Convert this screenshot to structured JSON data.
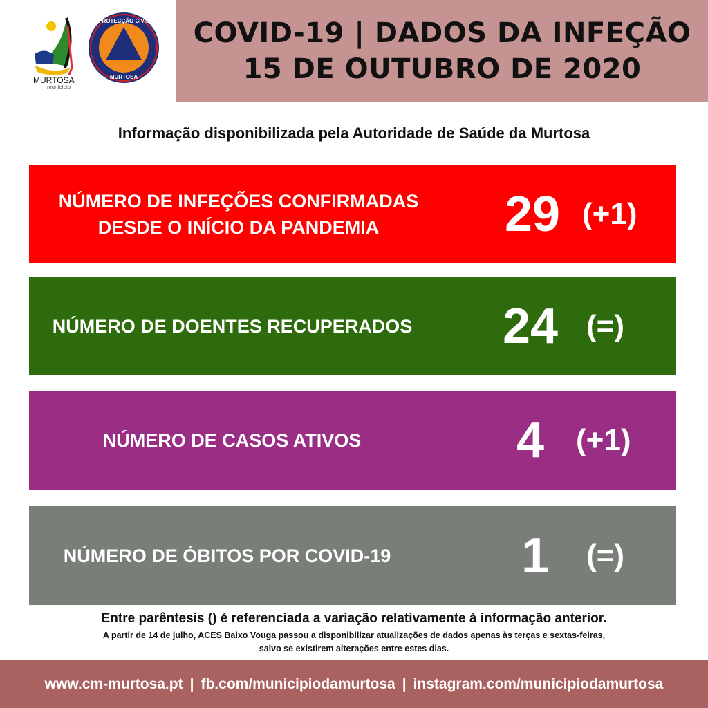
{
  "logos": {
    "municipio": "MURTOSA município",
    "protecao_civil": "PROTECÇÃO CIVIL MURTOSA"
  },
  "header": {
    "title_line1": "COVID-19 | DADOS DA INFEÇÃO",
    "title_line2": "15 DE OUTUBRO DE 2020"
  },
  "subtitle": "Informação disponibilizada pela Autoridade de Saúde da Murtosa",
  "stats": [
    {
      "label_line1": "NÚMERO DE INFEÇÕES CONFIRMADAS",
      "label_line2": "DESDE O INÍCIO DA PANDEMIA",
      "value": "29",
      "change": "(+1)",
      "color": "#ff0000"
    },
    {
      "label_line1": "NÚMERO DE DOENTES RECUPERADOS",
      "label_line2": "",
      "value": "24",
      "change": "(=)",
      "color": "#2e6b0c"
    },
    {
      "label_line1": "NÚMERO DE CASOS ATIVOS",
      "label_line2": "",
      "value": "4",
      "change": "(+1)",
      "color": "#9a2e84"
    },
    {
      "label_line1": "NÚMERO DE ÓBITOS POR COVID-19",
      "label_line2": "",
      "value": "1",
      "change": "(=)",
      "color": "#7a7e78"
    }
  ],
  "notes": {
    "main": "Entre parêntesis () é referenciada a variação relativamente à informação anterior.",
    "line1": "A partir de 14 de julho, ACES Baixo Vouga passou a disponibilizar atualizações de dados apenas às terças e sextas-feiras,",
    "line2": "salvo se existirem alterações entre estes dias."
  },
  "footer": {
    "website": "www.cm-murtosa.pt",
    "sep": "|",
    "facebook": "fb.com/municipiodamurtosa",
    "instagram": "instagram.com/municipiodamurtosa"
  }
}
